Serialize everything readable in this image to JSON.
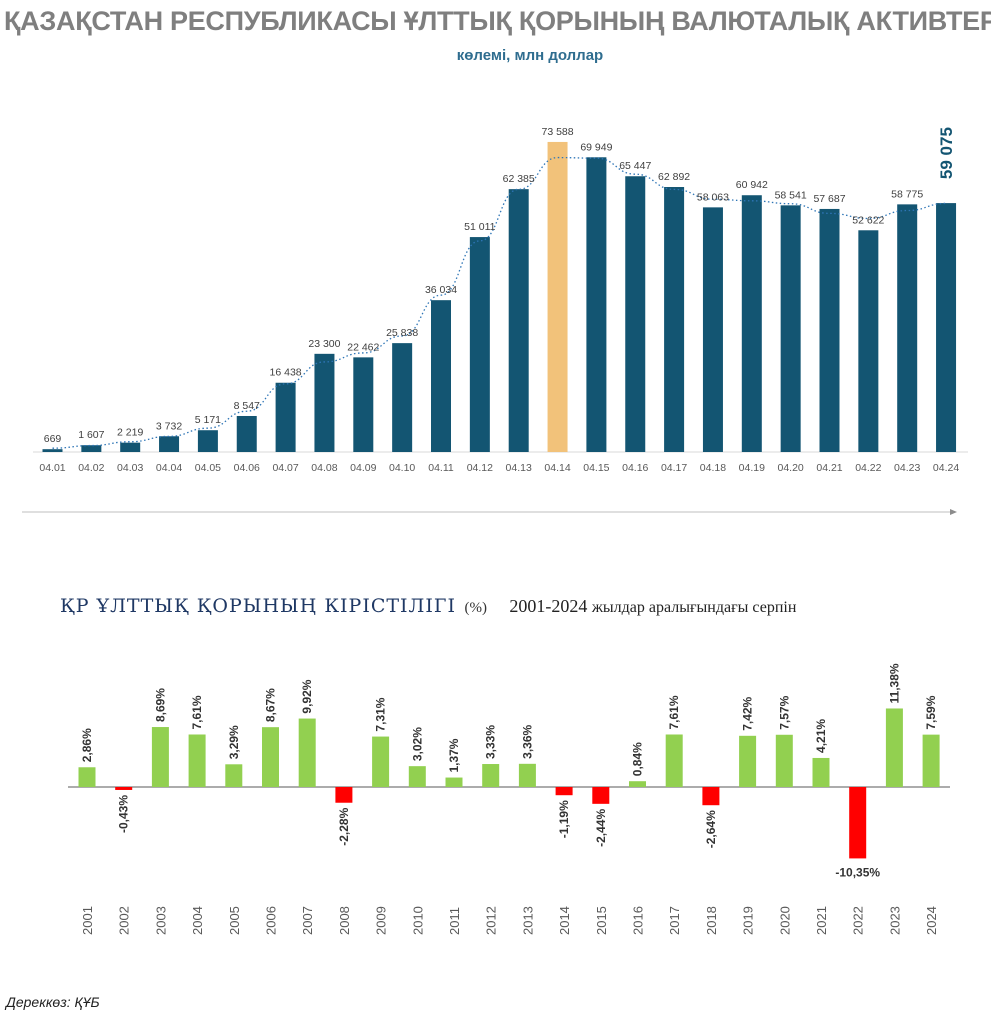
{
  "title": "ҚАЗАҚСТАН РЕСПУБЛИКАСЫ ҰЛТТЫҚ ҚОРЫНЫҢ ВАЛЮТАЛЫҚ АКТИВТЕРІ",
  "subtitle": "көлемі, млн доллар",
  "section2": {
    "heading": "ҚР ҰЛТТЫҚ ҚОРЫНЫҢ КІРІСТІЛІГІ",
    "unit": "(%)",
    "range": "2001-2024",
    "range_rest": "жылдар аралығындағы серпін"
  },
  "source": "Дереккөз: ҚҰБ",
  "colors": {
    "bar": "#135572",
    "highlight": "#f2c27a",
    "positive": "#92d050",
    "negative": "#ff0000",
    "trend": "#2e75b6"
  },
  "chart_data": [
    {
      "type": "bar",
      "title": "ҚАЗАҚСТАН РЕСПУБЛИКАСЫ ҰЛТТЫҚ ҚОРЫНЫҢ ВАЛЮТАЛЫҚ АКТИВТЕРІ",
      "subtitle": "көлемі, млн доллар",
      "categories": [
        "04.01",
        "04.02",
        "04.03",
        "04.04",
        "04.05",
        "04.06",
        "04.07",
        "04.08",
        "04.09",
        "04.10",
        "04.11",
        "04.12",
        "04.13",
        "04.14",
        "04.15",
        "04.16",
        "04.17",
        "04.18",
        "04.19",
        "04.20",
        "04.21",
        "04.22",
        "04.23",
        "04.24"
      ],
      "values": [
        669,
        1607,
        2219,
        3732,
        5171,
        8547,
        16438,
        23300,
        22462,
        25838,
        36034,
        51011,
        62385,
        73588,
        69949,
        65447,
        62892,
        58063,
        60942,
        58541,
        57687,
        52622,
        58775,
        59075
      ],
      "labels": [
        "669",
        "1 607",
        "2 219",
        "3 732",
        "5 171",
        "8 547",
        "16 438",
        "23 300",
        "22 462",
        "25 838",
        "36 034",
        "51 011",
        "62 385",
        "73 588",
        "69 949",
        "65 447",
        "62 892",
        "58 063",
        "60 942",
        "58 541",
        "57 687",
        "52 622",
        "58 775",
        "59 075"
      ],
      "highlight_index": 13,
      "trendline": true,
      "ylim": [
        0,
        75000
      ]
    },
    {
      "type": "bar",
      "title": "ҚР ҰЛТТЫҚ ҚОРЫНЫҢ КІРІСТІЛІГІ (%)",
      "categories": [
        "2001",
        "2002",
        "2003",
        "2004",
        "2005",
        "2006",
        "2007",
        "2008",
        "2009",
        "2010",
        "2011",
        "2012",
        "2013",
        "2014",
        "2015",
        "2016",
        "2017",
        "2018",
        "2019",
        "2020",
        "2021",
        "2022",
        "2023",
        "2024"
      ],
      "values": [
        2.86,
        -0.43,
        8.69,
        7.61,
        3.29,
        8.67,
        9.92,
        -2.28,
        7.31,
        3.02,
        1.37,
        3.33,
        3.36,
        -1.19,
        -2.44,
        0.84,
        7.61,
        -2.64,
        7.42,
        7.57,
        4.21,
        -10.35,
        11.38,
        7.59
      ],
      "labels": [
        "2,86%",
        "-0,43%",
        "8,69%",
        "7,61%",
        "3,29%",
        "8,67%",
        "9,92%",
        "-2,28%",
        "7,31%",
        "3,02%",
        "1,37%",
        "3,33%",
        "3,36%",
        "-1,19%",
        "-2,44%",
        "0,84%",
        "7,61%",
        "-2,64%",
        "7,42%",
        "7,57%",
        "4,21%",
        "-10,35%",
        "11,38%",
        "7,59%"
      ]
    }
  ]
}
